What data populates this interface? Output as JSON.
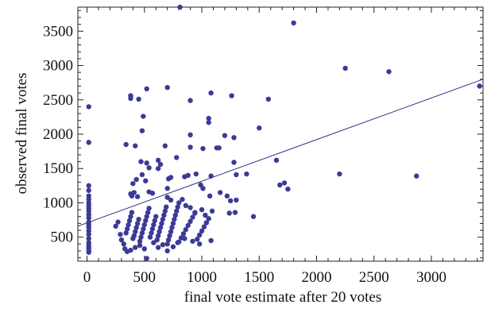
{
  "chart_data": {
    "type": "scatter",
    "xlabel": "final vote estimate after 20 votes",
    "ylabel": "observed final votes",
    "xlim": [
      -80,
      3450
    ],
    "ylim": [
      150,
      3850
    ],
    "xticks": [
      0,
      500,
      1000,
      1500,
      2000,
      2500,
      3000
    ],
    "yticks": [
      500,
      1000,
      1500,
      2000,
      2500,
      3000,
      3500
    ],
    "xtick_labels": [
      "0",
      "500",
      "1000",
      "1500",
      "2000",
      "2500",
      "3000"
    ],
    "ytick_labels": [
      "500",
      "1000",
      "1500",
      "2000",
      "2500",
      "3000",
      "3500"
    ],
    "grid": false,
    "point_color": "#3b3b96",
    "line_color": "#30308c",
    "fit_line": {
      "x": [
        -80,
        3450
      ],
      "y": [
        660,
        2800
      ]
    },
    "points": [
      [
        15,
        2400
      ],
      [
        15,
        1880
      ],
      [
        15,
        1250
      ],
      [
        15,
        1180
      ],
      [
        15,
        1100
      ],
      [
        15,
        1050
      ],
      [
        15,
        1000
      ],
      [
        15,
        960
      ],
      [
        15,
        920
      ],
      [
        15,
        880
      ],
      [
        15,
        830
      ],
      [
        15,
        780
      ],
      [
        15,
        720
      ],
      [
        15,
        680
      ],
      [
        15,
        640
      ],
      [
        15,
        590
      ],
      [
        15,
        540
      ],
      [
        15,
        480
      ],
      [
        15,
        420
      ],
      [
        15,
        380
      ],
      [
        15,
        340
      ],
      [
        15,
        300
      ],
      [
        15,
        280
      ],
      [
        810,
        3850
      ],
      [
        1800,
        3620
      ],
      [
        2250,
        2960
      ],
      [
        2630,
        2910
      ],
      [
        3420,
        2700
      ],
      [
        380,
        2560
      ],
      [
        380,
        2520
      ],
      [
        450,
        2510
      ],
      [
        520,
        2660
      ],
      [
        700,
        2680
      ],
      [
        900,
        2490
      ],
      [
        1080,
        2600
      ],
      [
        1260,
        2560
      ],
      [
        1580,
        2510
      ],
      [
        490,
        2260
      ],
      [
        1060,
        2230
      ],
      [
        1060,
        2170
      ],
      [
        1280,
        1950
      ],
      [
        480,
        2050
      ],
      [
        1500,
        2090
      ],
      [
        900,
        1990
      ],
      [
        1200,
        1980
      ],
      [
        680,
        1830
      ],
      [
        900,
        1810
      ],
      [
        1010,
        1790
      ],
      [
        1130,
        1800
      ],
      [
        1150,
        1800
      ],
      [
        340,
        1850
      ],
      [
        420,
        1830
      ],
      [
        620,
        1620
      ],
      [
        780,
        1660
      ],
      [
        1390,
        1420
      ],
      [
        1650,
        1620
      ],
      [
        2200,
        1420
      ],
      [
        2870,
        1390
      ],
      [
        1720,
        1290
      ],
      [
        1680,
        1260
      ],
      [
        1750,
        1200
      ],
      [
        1080,
        1390
      ],
      [
        1280,
        1590
      ],
      [
        1300,
        1410
      ],
      [
        470,
        1600
      ],
      [
        520,
        1580
      ],
      [
        540,
        1510
      ],
      [
        620,
        1500
      ],
      [
        640,
        1560
      ],
      [
        480,
        1410
      ],
      [
        430,
        1340
      ],
      [
        510,
        1320
      ],
      [
        400,
        1280
      ],
      [
        700,
        1210
      ],
      [
        710,
        1350
      ],
      [
        730,
        1370
      ],
      [
        850,
        1380
      ],
      [
        880,
        1400
      ],
      [
        950,
        1420
      ],
      [
        990,
        1260
      ],
      [
        1010,
        1210
      ],
      [
        1070,
        1100
      ],
      [
        1160,
        1150
      ],
      [
        1220,
        1100
      ],
      [
        1250,
        1030
      ],
      [
        1300,
        1040
      ],
      [
        1290,
        860
      ],
      [
        1240,
        850
      ],
      [
        1450,
        800
      ],
      [
        380,
        1130
      ],
      [
        390,
        1100
      ],
      [
        410,
        1150
      ],
      [
        440,
        1090
      ],
      [
        540,
        1160
      ],
      [
        570,
        1140
      ],
      [
        700,
        1080
      ],
      [
        730,
        1040
      ],
      [
        800,
        1000
      ],
      [
        830,
        1050
      ],
      [
        860,
        960
      ],
      [
        900,
        930
      ],
      [
        940,
        860
      ],
      [
        1000,
        900
      ],
      [
        1030,
        820
      ],
      [
        1090,
        880
      ],
      [
        250,
        660
      ],
      [
        270,
        720
      ],
      [
        290,
        540
      ],
      [
        300,
        460
      ],
      [
        320,
        400
      ],
      [
        340,
        560
      ],
      [
        350,
        620
      ],
      [
        360,
        680
      ],
      [
        370,
        740
      ],
      [
        380,
        800
      ],
      [
        390,
        860
      ],
      [
        400,
        480
      ],
      [
        410,
        520
      ],
      [
        420,
        580
      ],
      [
        430,
        640
      ],
      [
        440,
        700
      ],
      [
        450,
        760
      ],
      [
        460,
        440
      ],
      [
        470,
        500
      ],
      [
        480,
        560
      ],
      [
        490,
        620
      ],
      [
        500,
        680
      ],
      [
        510,
        740
      ],
      [
        520,
        800
      ],
      [
        530,
        860
      ],
      [
        540,
        920
      ],
      [
        550,
        500
      ],
      [
        560,
        560
      ],
      [
        570,
        620
      ],
      [
        580,
        680
      ],
      [
        590,
        740
      ],
      [
        600,
        800
      ],
      [
        610,
        460
      ],
      [
        620,
        520
      ],
      [
        630,
        580
      ],
      [
        640,
        640
      ],
      [
        650,
        700
      ],
      [
        660,
        760
      ],
      [
        670,
        820
      ],
      [
        680,
        880
      ],
      [
        690,
        940
      ],
      [
        700,
        400
      ],
      [
        710,
        460
      ],
      [
        720,
        520
      ],
      [
        730,
        580
      ],
      [
        740,
        640
      ],
      [
        750,
        700
      ],
      [
        760,
        760
      ],
      [
        770,
        820
      ],
      [
        780,
        880
      ],
      [
        790,
        940
      ],
      [
        800,
        430
      ],
      [
        820,
        490
      ],
      [
        840,
        550
      ],
      [
        860,
        610
      ],
      [
        880,
        670
      ],
      [
        900,
        730
      ],
      [
        920,
        790
      ],
      [
        940,
        850
      ],
      [
        960,
        470
      ],
      [
        980,
        530
      ],
      [
        1000,
        590
      ],
      [
        1020,
        650
      ],
      [
        1040,
        710
      ],
      [
        1060,
        770
      ],
      [
        1080,
        450
      ],
      [
        330,
        330
      ],
      [
        350,
        290
      ],
      [
        380,
        310
      ],
      [
        420,
        350
      ],
      [
        460,
        380
      ],
      [
        500,
        330
      ],
      [
        520,
        190
      ],
      [
        580,
        420
      ],
      [
        620,
        350
      ],
      [
        660,
        390
      ],
      [
        700,
        300
      ],
      [
        750,
        360
      ],
      [
        790,
        420
      ],
      [
        850,
        480
      ],
      [
        920,
        440
      ],
      [
        980,
        400
      ]
    ]
  }
}
